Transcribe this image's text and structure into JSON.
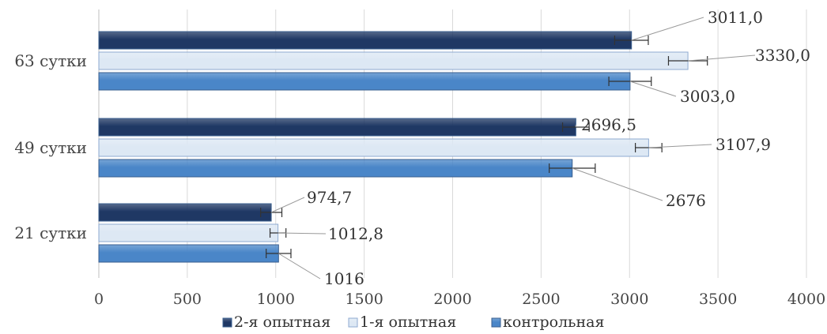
{
  "chart_data": {
    "type": "bar",
    "orientation": "horizontal",
    "categories": [
      "63 сутки",
      "49 сутки",
      "21 сутки"
    ],
    "series": [
      {
        "name": "2-я опытная",
        "values": [
          3011.0,
          2696.5,
          974.7
        ],
        "labels": [
          "3011,0",
          "2696,5",
          "974,7"
        ],
        "errors": [
          95,
          75,
          60
        ],
        "color": "#1f3864"
      },
      {
        "name": "1-я опытная",
        "values": [
          3330.0,
          3107.9,
          1012.8
        ],
        "labels": [
          "3330,0",
          "3107,9",
          "1012,8"
        ],
        "errors": [
          110,
          75,
          45
        ],
        "color": "#dde8f4"
      },
      {
        "name": "контрольная",
        "values": [
          3003.0,
          2676,
          1016
        ],
        "labels": [
          "3003,0",
          "2676",
          "1016"
        ],
        "errors": [
          120,
          130,
          70
        ],
        "color": "#4a86c8"
      }
    ],
    "xlim": [
      0,
      4000
    ],
    "xticks": [
      0,
      500,
      1000,
      1500,
      2000,
      2500,
      3000,
      3500,
      4000
    ],
    "grid": true,
    "legend_position": "bottom"
  }
}
